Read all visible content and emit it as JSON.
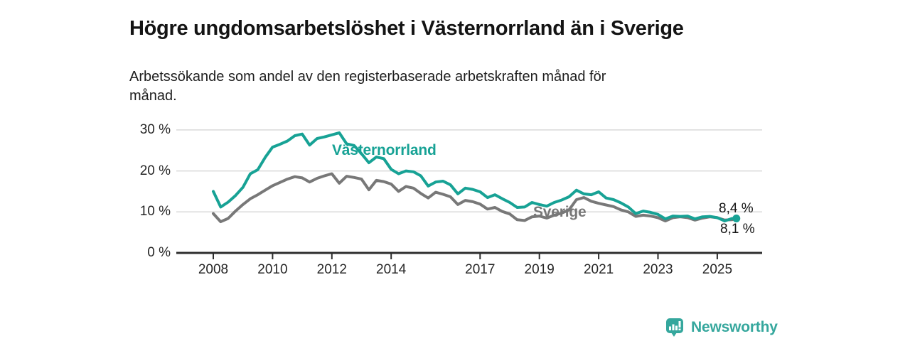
{
  "header": {
    "title": "Högre ungdomsarbetslöshet i Västernorrland än i Sverige",
    "subtitle": "Arbetssökande som andel av den registerbaserade arbetskraften månad för månad."
  },
  "footer": {
    "brand": "Newsworthy"
  },
  "colors": {
    "accent_teal": "#17a295",
    "series_gray": "#787878",
    "gridline": "#d9d9d9",
    "axis": "#2d2d2d",
    "text": "#141414",
    "logo_teal": "#35a79d"
  },
  "chart_data": {
    "type": "line",
    "title": "Högre ungdomsarbetslöshet i Västernorrland än i Sverige",
    "subtitle": "Arbetssökande som andel av den registerbaserade arbetskraften månad för månad.",
    "xlabel": "",
    "ylabel": "%",
    "ylim": [
      0,
      31
    ],
    "xlim": [
      2006.75,
      2026.5
    ],
    "grid": "horizontal",
    "legend": "inline-labels",
    "x_ticks": [
      2008,
      2010,
      2012,
      2014,
      2017,
      2019,
      2021,
      2023,
      2025
    ],
    "y_ticks": [
      {
        "value": 0,
        "label": "0 %"
      },
      {
        "value": 10,
        "label": "10 %"
      },
      {
        "value": 20,
        "label": "20 %"
      },
      {
        "value": 30,
        "label": "30 %"
      }
    ],
    "x": [
      2008.0,
      2008.25,
      2008.5,
      2008.75,
      2009.0,
      2009.25,
      2009.5,
      2009.75,
      2010.0,
      2010.25,
      2010.5,
      2010.75,
      2011.0,
      2011.25,
      2011.5,
      2011.75,
      2012.0,
      2012.25,
      2012.5,
      2012.75,
      2013.0,
      2013.25,
      2013.5,
      2013.75,
      2014.0,
      2014.25,
      2014.5,
      2014.75,
      2015.0,
      2015.25,
      2015.5,
      2015.75,
      2016.0,
      2016.25,
      2016.5,
      2016.75,
      2017.0,
      2017.25,
      2017.5,
      2017.75,
      2018.0,
      2018.25,
      2018.5,
      2018.75,
      2019.0,
      2019.25,
      2019.5,
      2019.75,
      2020.0,
      2020.25,
      2020.5,
      2020.75,
      2021.0,
      2021.25,
      2021.5,
      2021.75,
      2022.0,
      2022.25,
      2022.5,
      2022.75,
      2023.0,
      2023.25,
      2023.5,
      2023.75,
      2024.0,
      2024.25,
      2024.5,
      2024.75,
      2025.0,
      2025.25,
      2025.5
    ],
    "series": [
      {
        "name": "Västernorrland",
        "color": "#17a295",
        "end_label": "8,4 %",
        "end_value": 8.4,
        "values": [
          15.0,
          11.2,
          12.4,
          14.0,
          16.0,
          19.3,
          20.3,
          23.3,
          25.8,
          26.5,
          27.3,
          28.6,
          29.0,
          26.3,
          27.9,
          28.3,
          28.8,
          29.3,
          26.6,
          26.2,
          24.2,
          22.0,
          23.4,
          23.0,
          20.4,
          19.3,
          20.0,
          19.8,
          18.8,
          16.3,
          17.3,
          17.5,
          16.6,
          14.4,
          15.8,
          15.5,
          14.9,
          13.5,
          14.2,
          13.2,
          12.3,
          11.1,
          11.2,
          12.3,
          11.8,
          11.4,
          12.3,
          12.9,
          13.7,
          15.3,
          14.4,
          14.2,
          14.9,
          13.4,
          13.0,
          12.2,
          11.2,
          9.6,
          10.2,
          9.9,
          9.4,
          8.3,
          9.0,
          8.9,
          9.0,
          8.3,
          8.8,
          8.9,
          8.6,
          7.8,
          8.4
        ]
      },
      {
        "name": "Sverige",
        "color": "#787878",
        "end_label": "8,1 %",
        "end_value": 8.1,
        "values": [
          9.6,
          7.6,
          8.4,
          10.2,
          11.8,
          13.2,
          14.2,
          15.3,
          16.4,
          17.2,
          18.0,
          18.6,
          18.3,
          17.3,
          18.2,
          18.8,
          19.3,
          17.0,
          18.7,
          18.4,
          18.0,
          15.4,
          17.7,
          17.4,
          16.8,
          15.0,
          16.2,
          15.8,
          14.5,
          13.4,
          14.8,
          14.3,
          13.7,
          11.8,
          12.8,
          12.5,
          11.9,
          10.7,
          11.1,
          10.1,
          9.5,
          8.1,
          7.9,
          8.8,
          9.0,
          8.5,
          9.2,
          9.7,
          10.5,
          13.0,
          13.5,
          12.6,
          12.1,
          11.7,
          11.3,
          10.5,
          10.0,
          8.9,
          9.2,
          9.0,
          8.6,
          7.8,
          8.6,
          8.8,
          8.6,
          8.0,
          8.5,
          8.8,
          8.6,
          8.0,
          8.1
        ]
      }
    ]
  }
}
